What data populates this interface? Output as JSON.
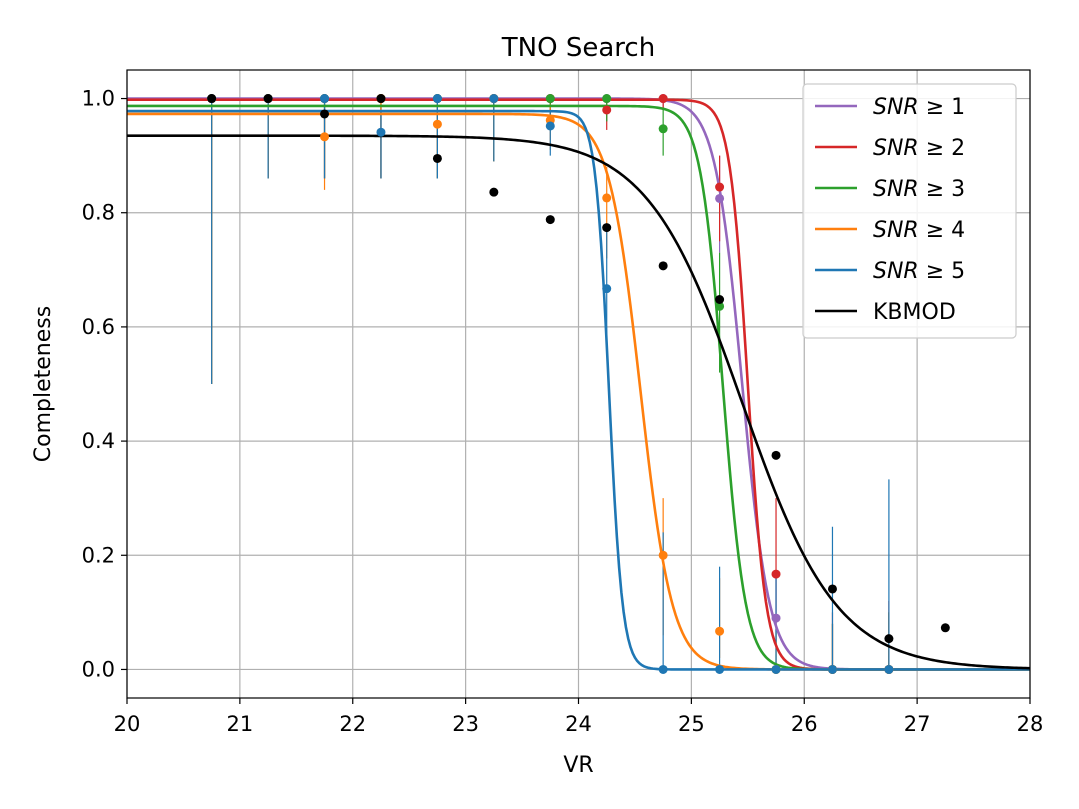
{
  "chart_data": {
    "type": "line",
    "title": "TNO Search",
    "xlabel": "VR",
    "ylabel": "Completeness",
    "xlim": [
      20,
      28
    ],
    "ylim": [
      -0.05,
      1.05
    ],
    "xticks": [
      20,
      21,
      22,
      23,
      24,
      25,
      26,
      27,
      28
    ],
    "xtick_labels": [
      "20",
      "21",
      "22",
      "23",
      "24",
      "25",
      "26",
      "27",
      "28"
    ],
    "yticks": [
      0.0,
      0.2,
      0.4,
      0.6,
      0.8,
      1.0
    ],
    "ytick_labels": [
      "0.0",
      "0.2",
      "0.4",
      "0.6",
      "0.8",
      "1.0"
    ],
    "grid": true,
    "legend_position": "top-right",
    "series": [
      {
        "name": "SNR ≥ 1",
        "legend_prefix": "SNR",
        "legend_suffix": " ≥ 1",
        "color": "#9467bd",
        "fit": {
          "a": 1.0,
          "m50": 25.45,
          "w": 0.12
        },
        "points": [
          {
            "x": 20.75,
            "y": 1.0,
            "lo": 0.5,
            "hi": 1.0
          },
          {
            "x": 21.25,
            "y": 1.0,
            "lo": 0.86,
            "hi": 1.0
          },
          {
            "x": 21.75,
            "y": 1.0,
            "lo": 0.86,
            "hi": 1.0
          },
          {
            "x": 22.25,
            "y": 1.0,
            "lo": 0.86,
            "hi": 1.0
          },
          {
            "x": 22.75,
            "y": 1.0,
            "lo": 0.86,
            "hi": 1.0
          },
          {
            "x": 23.25,
            "y": 1.0,
            "lo": 0.89,
            "hi": 1.0
          },
          {
            "x": 23.75,
            "y": 1.0,
            "lo": 0.95,
            "hi": 1.0
          },
          {
            "x": 24.25,
            "y": 1.0,
            "lo": 0.96,
            "hi": 1.0
          },
          {
            "x": 24.75,
            "y": 1.0,
            "lo": 0.98,
            "hi": 1.0
          },
          {
            "x": 25.25,
            "y": 0.825,
            "lo": 0.73,
            "hi": 0.9
          },
          {
            "x": 25.75,
            "y": 0.09,
            "lo": 0.04,
            "hi": 0.17
          },
          {
            "x": 26.25,
            "y": 0.0,
            "lo": 0.0,
            "hi": 0.08
          },
          {
            "x": 26.75,
            "y": 0.0,
            "lo": 0.0,
            "hi": 0.1
          }
        ]
      },
      {
        "name": "SNR ≥ 2",
        "legend_prefix": "SNR",
        "legend_suffix": " ≥ 2",
        "color": "#d62728",
        "fit": {
          "a": 0.998,
          "m50": 25.5,
          "w": 0.08
        },
        "points": [
          {
            "x": 20.75,
            "y": 1.0,
            "lo": 0.5,
            "hi": 1.0
          },
          {
            "x": 21.25,
            "y": 1.0,
            "lo": 0.86,
            "hi": 1.0
          },
          {
            "x": 21.75,
            "y": 1.0,
            "lo": 0.86,
            "hi": 1.0
          },
          {
            "x": 22.25,
            "y": 1.0,
            "lo": 0.86,
            "hi": 1.0
          },
          {
            "x": 22.75,
            "y": 1.0,
            "lo": 0.86,
            "hi": 1.0
          },
          {
            "x": 23.25,
            "y": 1.0,
            "lo": 0.89,
            "hi": 1.0
          },
          {
            "x": 23.75,
            "y": 1.0,
            "lo": 0.95,
            "hi": 1.0
          },
          {
            "x": 24.25,
            "y": 0.98,
            "lo": 0.945,
            "hi": 1.0
          },
          {
            "x": 24.75,
            "y": 1.0,
            "lo": 0.98,
            "hi": 1.0
          },
          {
            "x": 25.25,
            "y": 0.845,
            "lo": 0.75,
            "hi": 0.9
          },
          {
            "x": 25.75,
            "y": 0.167,
            "lo": 0.07,
            "hi": 0.3
          },
          {
            "x": 26.25,
            "y": 0.0,
            "lo": 0.0,
            "hi": 0.1
          },
          {
            "x": 26.75,
            "y": 0.0,
            "lo": 0.0,
            "hi": 0.12
          }
        ]
      },
      {
        "name": "SNR ≥ 3",
        "legend_prefix": "SNR",
        "legend_suffix": " ≥ 3",
        "color": "#2ca02c",
        "fit": {
          "a": 0.987,
          "m50": 25.28,
          "w": 0.1
        },
        "points": [
          {
            "x": 20.75,
            "y": 1.0,
            "lo": 0.5,
            "hi": 1.0
          },
          {
            "x": 21.25,
            "y": 1.0,
            "lo": 0.86,
            "hi": 1.0
          },
          {
            "x": 21.75,
            "y": 1.0,
            "lo": 0.86,
            "hi": 1.0
          },
          {
            "x": 22.25,
            "y": 1.0,
            "lo": 0.86,
            "hi": 1.0
          },
          {
            "x": 22.75,
            "y": 1.0,
            "lo": 0.86,
            "hi": 1.0
          },
          {
            "x": 23.25,
            "y": 1.0,
            "lo": 0.89,
            "hi": 1.0
          },
          {
            "x": 23.75,
            "y": 1.0,
            "lo": 0.95,
            "hi": 1.0
          },
          {
            "x": 24.25,
            "y": 1.0,
            "lo": 0.96,
            "hi": 1.0
          },
          {
            "x": 24.75,
            "y": 0.947,
            "lo": 0.9,
            "hi": 0.98
          },
          {
            "x": 25.25,
            "y": 0.636,
            "lo": 0.52,
            "hi": 0.73
          },
          {
            "x": 25.75,
            "y": 0.0,
            "lo": 0.0,
            "hi": 0.07
          },
          {
            "x": 26.25,
            "y": 0.0,
            "lo": 0.0,
            "hi": 0.08
          },
          {
            "x": 26.75,
            "y": 0.0,
            "lo": 0.0,
            "hi": 0.1
          }
        ]
      },
      {
        "name": "SNR ≥ 4",
        "legend_prefix": "SNR",
        "legend_suffix": " ≥ 4",
        "color": "#ff7f0e",
        "fit": {
          "a": 0.973,
          "m50": 24.55,
          "w": 0.14
        },
        "points": [
          {
            "x": 20.75,
            "y": 1.0,
            "lo": 0.5,
            "hi": 1.0
          },
          {
            "x": 21.25,
            "y": 1.0,
            "lo": 0.86,
            "hi": 1.0
          },
          {
            "x": 21.75,
            "y": 0.933,
            "lo": 0.84,
            "hi": 0.98
          },
          {
            "x": 22.25,
            "y": 1.0,
            "lo": 0.86,
            "hi": 1.0
          },
          {
            "x": 22.75,
            "y": 0.955,
            "lo": 0.9,
            "hi": 0.99
          },
          {
            "x": 23.25,
            "y": 1.0,
            "lo": 0.89,
            "hi": 1.0
          },
          {
            "x": 23.75,
            "y": 0.962,
            "lo": 0.91,
            "hi": 0.99
          },
          {
            "x": 24.25,
            "y": 0.826,
            "lo": 0.72,
            "hi": 0.88
          },
          {
            "x": 24.75,
            "y": 0.2,
            "lo": 0.06,
            "hi": 0.3
          },
          {
            "x": 25.25,
            "y": 0.067,
            "lo": 0.02,
            "hi": 0.16
          },
          {
            "x": 25.75,
            "y": 0.0,
            "lo": 0.0,
            "hi": 0.07
          },
          {
            "x": 26.25,
            "y": 0.0,
            "lo": 0.0,
            "hi": 0.08
          },
          {
            "x": 26.75,
            "y": 0.0,
            "lo": 0.0,
            "hi": 0.1
          }
        ]
      },
      {
        "name": "SNR ≥ 5",
        "legend_prefix": "SNR",
        "legend_suffix": " ≥ 5",
        "color": "#1f77b4",
        "fit": {
          "a": 0.978,
          "m50": 24.27,
          "w": 0.06
        },
        "points": [
          {
            "x": 20.75,
            "y": 1.0,
            "lo": 0.5,
            "hi": 1.0
          },
          {
            "x": 21.25,
            "y": 1.0,
            "lo": 0.86,
            "hi": 1.0
          },
          {
            "x": 21.75,
            "y": 1.0,
            "lo": 0.86,
            "hi": 1.0
          },
          {
            "x": 22.25,
            "y": 0.941,
            "lo": 0.86,
            "hi": 0.98
          },
          {
            "x": 22.75,
            "y": 1.0,
            "lo": 0.86,
            "hi": 1.0
          },
          {
            "x": 23.25,
            "y": 1.0,
            "lo": 0.89,
            "hi": 1.0
          },
          {
            "x": 23.75,
            "y": 0.952,
            "lo": 0.9,
            "hi": 0.98
          },
          {
            "x": 24.25,
            "y": 0.667,
            "lo": 0.55,
            "hi": 0.77
          },
          {
            "x": 24.75,
            "y": 0.0,
            "lo": 0.0,
            "hi": 0.24
          },
          {
            "x": 25.25,
            "y": 0.0,
            "lo": 0.0,
            "hi": 0.18
          },
          {
            "x": 25.75,
            "y": 0.0,
            "lo": 0.0,
            "hi": 0.16
          },
          {
            "x": 26.25,
            "y": 0.0,
            "lo": 0.0,
            "hi": 0.25
          },
          {
            "x": 26.75,
            "y": 0.0,
            "lo": 0.0,
            "hi": 0.333
          }
        ]
      },
      {
        "name": "KBMOD",
        "legend_prefix": "",
        "legend_suffix": "KBMOD",
        "color": "#000000",
        "fit": {
          "a": 0.935,
          "m50": 25.45,
          "w": 0.42
        },
        "points": [
          {
            "x": 20.75,
            "y": 1.0
          },
          {
            "x": 21.25,
            "y": 1.0
          },
          {
            "x": 21.75,
            "y": 0.973
          },
          {
            "x": 22.25,
            "y": 1.0
          },
          {
            "x": 22.75,
            "y": 0.895
          },
          {
            "x": 23.25,
            "y": 0.836
          },
          {
            "x": 23.75,
            "y": 0.788
          },
          {
            "x": 24.25,
            "y": 0.774
          },
          {
            "x": 24.75,
            "y": 0.707
          },
          {
            "x": 25.25,
            "y": 0.648
          },
          {
            "x": 25.75,
            "y": 0.375
          },
          {
            "x": 26.25,
            "y": 0.141
          },
          {
            "x": 26.75,
            "y": 0.054
          },
          {
            "x": 27.25,
            "y": 0.073
          }
        ]
      }
    ]
  }
}
